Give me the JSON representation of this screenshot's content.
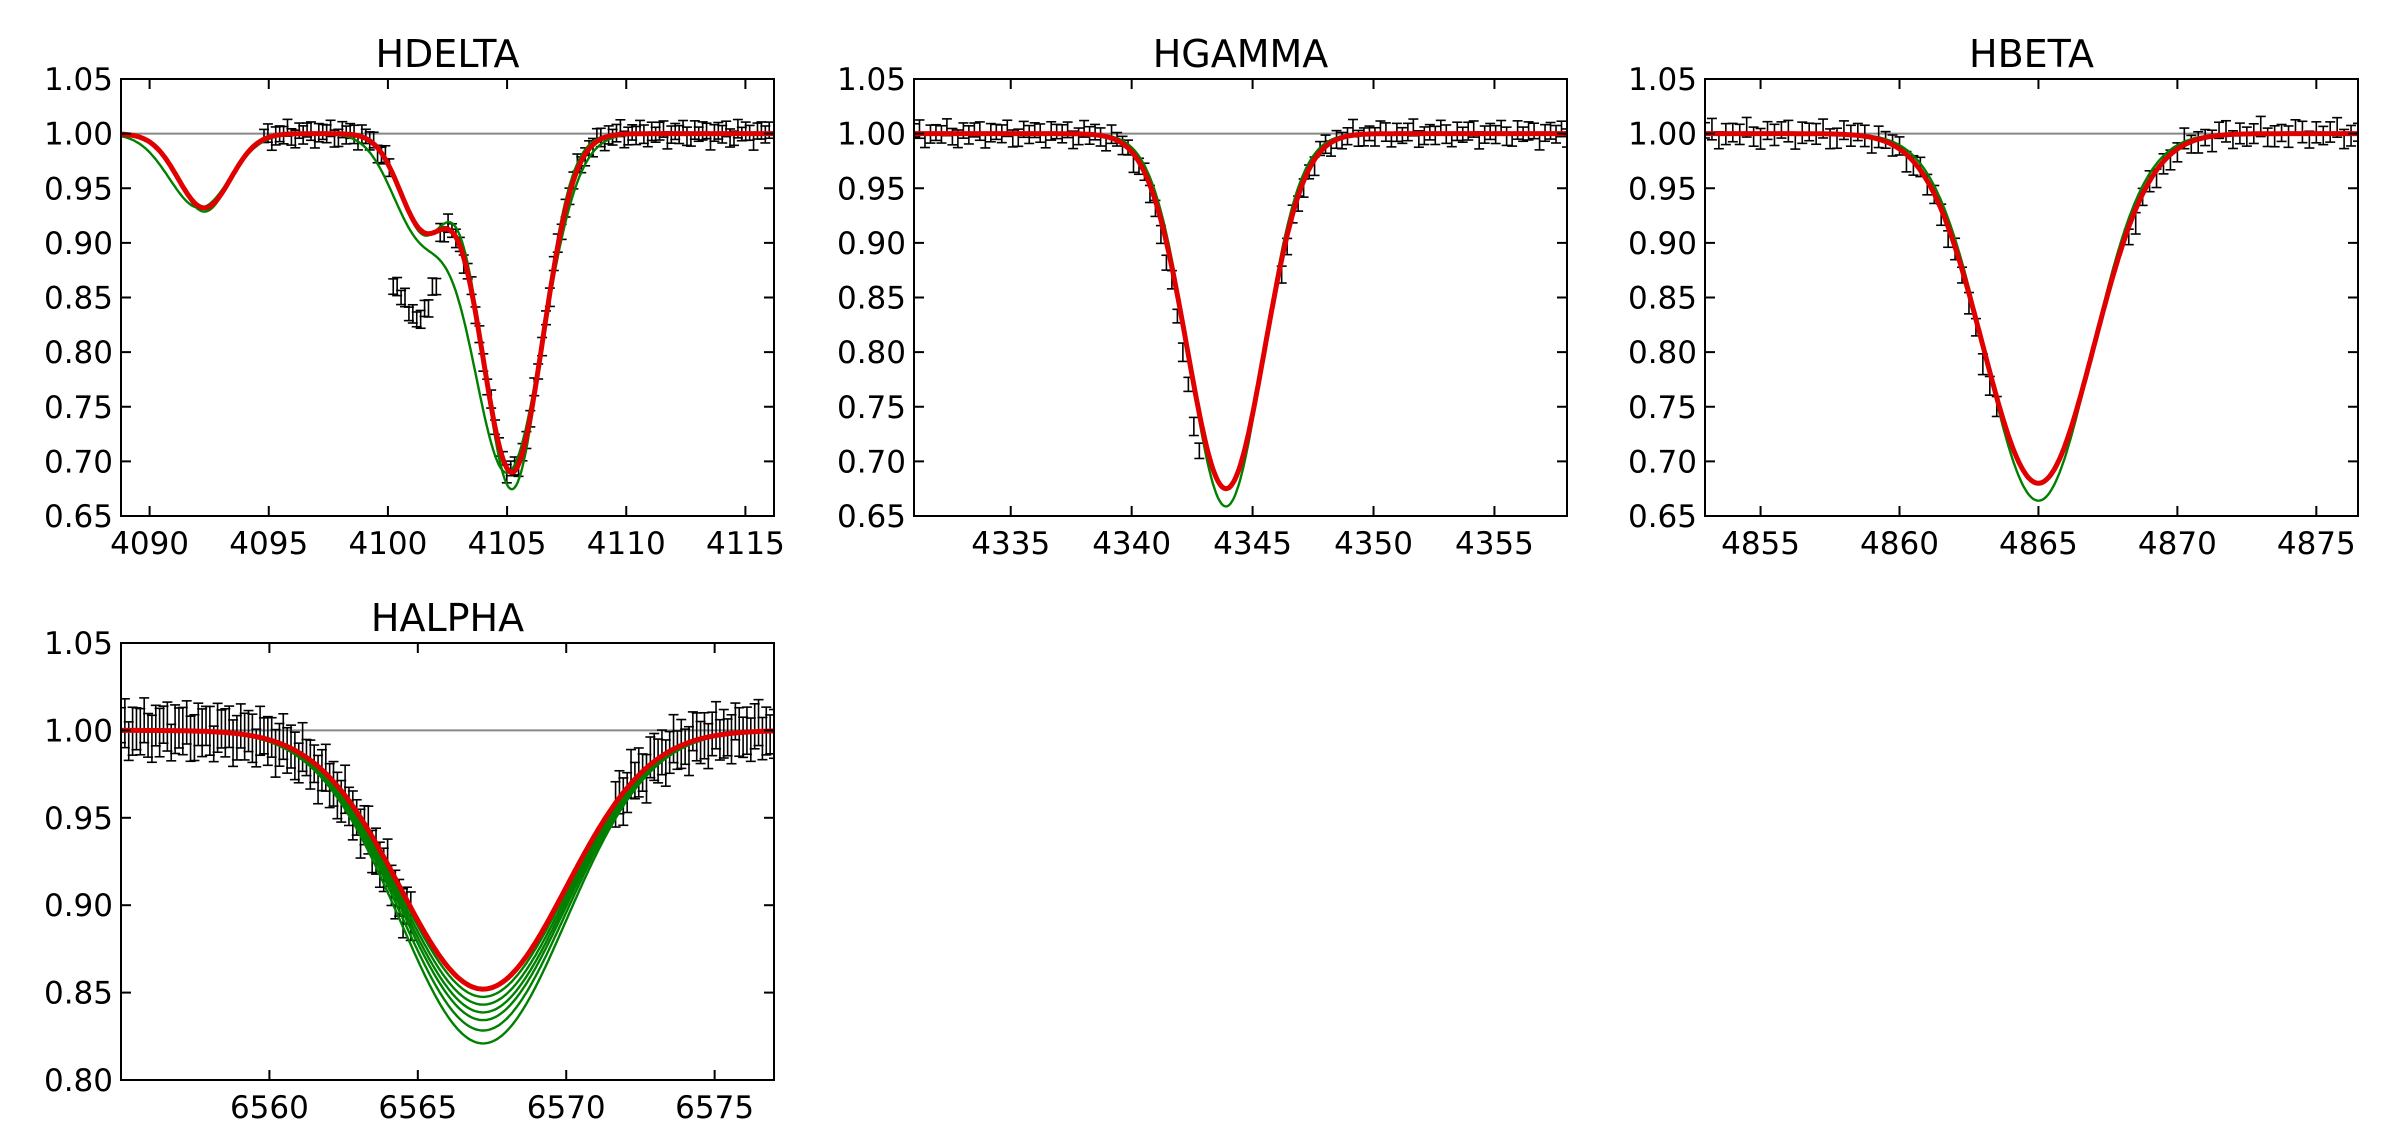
{
  "chart_data": [
    {
      "type": "line",
      "title": "HDELTA",
      "xlim": [
        4088.8,
        4116.2
      ],
      "ylim": [
        0.65,
        1.05
      ],
      "x_ticks": [
        4090,
        4095,
        4100,
        4105,
        4110,
        4115
      ],
      "y_ticks": [
        0.65,
        0.7,
        0.75,
        0.8,
        0.85,
        0.9,
        0.95,
        1.0,
        1.05
      ],
      "continuum": 1.0,
      "colors": {
        "model": "#e00000",
        "models": "#008000",
        "data": "#000000",
        "continuum": "#888888"
      },
      "model_lines": [
        {
          "center": 4092.3,
          "depth": 0.068,
          "width": 1.1
        },
        {
          "center": 4101.5,
          "depth": 0.085,
          "width": 1.0
        },
        {
          "center": 4105.2,
          "depth": 0.31,
          "width": 1.3
        }
      ],
      "data": {
        "x_start": 4094.8,
        "x_end": 4116.0,
        "n": 130,
        "error": 0.006
      },
      "data_overrides": [
        {
          "x": 4100.4,
          "y": 0.86
        },
        {
          "x": 4100.7,
          "y": 0.85
        },
        {
          "x": 4101.0,
          "y": 0.835
        },
        {
          "x": 4101.3,
          "y": 0.83
        },
        {
          "x": 4101.6,
          "y": 0.84
        },
        {
          "x": 4102.0,
          "y": 0.86
        }
      ],
      "series_variations": [
        {
          "center": 0.0,
          "depth": 1.05,
          "width": 0.95
        },
        {
          "center": -0.2,
          "depth": 1.0,
          "width": 1.15
        },
        {
          "center": 0.0,
          "depth": 1.0,
          "width": 1.0
        }
      ]
    },
    {
      "type": "line",
      "title": "HGAMMA",
      "xlim": [
        4331.0,
        4358.0
      ],
      "ylim": [
        0.65,
        1.05
      ],
      "x_ticks": [
        4335,
        4340,
        4345,
        4350,
        4355
      ],
      "y_ticks": [
        0.65,
        0.7,
        0.75,
        0.8,
        0.85,
        0.9,
        0.95,
        1.0,
        1.05
      ],
      "continuum": 1.0,
      "colors": {
        "model": "#e00000",
        "models": "#008000",
        "data": "#000000",
        "continuum": "#888888"
      },
      "model_lines": [
        {
          "center": 4343.9,
          "depth": 0.325,
          "width": 1.6
        }
      ],
      "data": {
        "x_start": 4331.0,
        "x_end": 4358.0,
        "n": 120,
        "error": 0.006
      },
      "data_gap": [
        4342.9,
        4346.0
      ],
      "data_shift": {
        "center": 4344.0,
        "left_offset": -0.015,
        "right_offset": -0.01
      },
      "series_variations": [
        {
          "center": 0.0,
          "depth": 1.05,
          "width": 0.95
        },
        {
          "center": 0.0,
          "depth": 1.0,
          "width": 1.0
        }
      ]
    },
    {
      "type": "line",
      "title": "HBETA",
      "xlim": [
        4853.0,
        4876.5
      ],
      "ylim": [
        0.65,
        1.05
      ],
      "x_ticks": [
        4855,
        4860,
        4865,
        4870,
        4875
      ],
      "y_ticks": [
        0.65,
        0.7,
        0.75,
        0.8,
        0.85,
        0.9,
        0.95,
        1.0,
        1.05
      ],
      "continuum": 1.0,
      "colors": {
        "model": "#e00000",
        "models": "#008000",
        "data": "#000000",
        "continuum": "#888888"
      },
      "model_lines": [
        {
          "center": 4865.0,
          "depth": 0.32,
          "width": 2.0
        }
      ],
      "data": {
        "x_start": 4853.0,
        "x_end": 4876.5,
        "n": 95,
        "error": 0.007
      },
      "data_gap": [
        4863.7,
        4868.2
      ],
      "data_shift": {
        "center": 4865.0,
        "left_offset": -0.006,
        "right_offset": -0.012
      },
      "series_variations": [
        {
          "center": 0.0,
          "depth": 1.05,
          "width": 0.95
        },
        {
          "center": 0.0,
          "depth": 1.0,
          "width": 1.0
        }
      ]
    },
    {
      "type": "line",
      "title": "HALPHA",
      "xlim": [
        6555.0,
        6577.0
      ],
      "ylim": [
        0.8,
        1.05
      ],
      "x_ticks": [
        6560,
        6565,
        6570,
        6575
      ],
      "y_ticks": [
        0.8,
        0.85,
        0.9,
        0.95,
        1.0,
        1.05
      ],
      "continuum": 1.0,
      "colors": {
        "model": "#e00000",
        "models": "#008000",
        "data": "#000000",
        "continuum": "#888888"
      },
      "model_lines": [
        {
          "center": 6567.2,
          "depth": 0.148,
          "width": 2.8
        }
      ],
      "data": {
        "x_start": 6555.0,
        "x_end": 6577.0,
        "n": 170,
        "error": 0.01
      },
      "data_gap": [
        6564.8,
        6571.6
      ],
      "data_shift": {
        "center": 6567.2,
        "left_offset": -0.004,
        "right_offset": 0.0
      },
      "series_variations": [
        {
          "center": 0.0,
          "depth": 1.21,
          "width": 1.0
        },
        {
          "center": 0.0,
          "depth": 1.16,
          "width": 1.0
        },
        {
          "center": 0.0,
          "depth": 1.12,
          "width": 1.0
        },
        {
          "center": 0.0,
          "depth": 1.09,
          "width": 1.0
        },
        {
          "center": 0.0,
          "depth": 1.06,
          "width": 1.0
        },
        {
          "center": 0.0,
          "depth": 1.03,
          "width": 1.0
        },
        {
          "center": 0.0,
          "depth": 1.0,
          "width": 1.0
        }
      ]
    }
  ]
}
